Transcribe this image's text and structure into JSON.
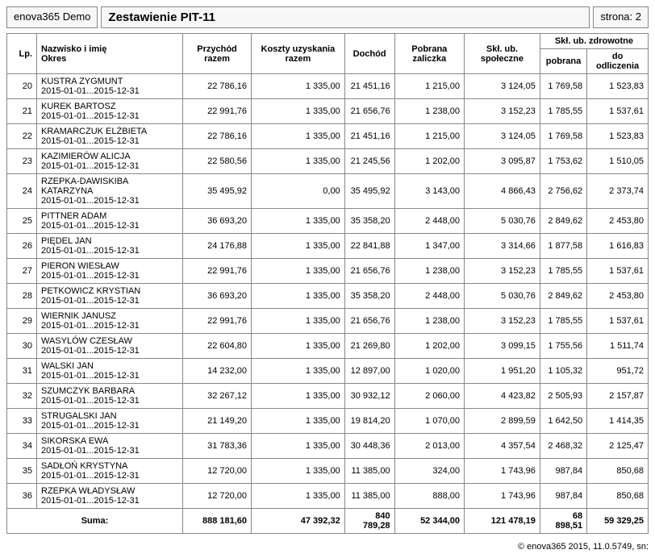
{
  "header": {
    "app": "enova365 Demo",
    "title": "Zestawienie PIT-11",
    "page_label": "strona: 2"
  },
  "columns": {
    "lp": "Lp.",
    "name": "Nazwisko i imię\nOkres",
    "przychod": "Przychód razem",
    "koszty": "Koszty uzyskania razem",
    "dochod": "Dochód",
    "zaliczka": "Pobrana zaliczka",
    "spoleczne": "Skł. ub. społeczne",
    "zdrowotne": "Skł. ub. zdrowotne",
    "zdrowotne_pobrana": "pobrana",
    "zdrowotne_odlicz": "do odliczenia"
  },
  "rows": [
    {
      "lp": "20",
      "name": "KUSTRA ZYGMUNT",
      "period": "2015-01-01...2015-12-31",
      "przychod": "22 786,16",
      "koszty": "1 335,00",
      "dochod": "21 451,16",
      "zaliczka": "1 215,00",
      "spoleczne": "3 124,05",
      "zdr_pob": "1 769,58",
      "zdr_odl": "1 523,83"
    },
    {
      "lp": "21",
      "name": "KUREK BARTOSZ",
      "period": "2015-01-01...2015-12-31",
      "przychod": "22 991,76",
      "koszty": "1 335,00",
      "dochod": "21 656,76",
      "zaliczka": "1 238,00",
      "spoleczne": "3 152,23",
      "zdr_pob": "1 785,55",
      "zdr_odl": "1 537,61"
    },
    {
      "lp": "22",
      "name": "KRAMARCZUK ELŻBIETA",
      "period": "2015-01-01...2015-12-31",
      "przychod": "22 786,16",
      "koszty": "1 335,00",
      "dochod": "21 451,16",
      "zaliczka": "1 215,00",
      "spoleczne": "3 124,05",
      "zdr_pob": "1 769,58",
      "zdr_odl": "1 523,83"
    },
    {
      "lp": "23",
      "name": "KAZIMIERÓW ALICJA",
      "period": "2015-01-01...2015-12-31",
      "przychod": "22 580,56",
      "koszty": "1 335,00",
      "dochod": "21 245,56",
      "zaliczka": "1 202,00",
      "spoleczne": "3 095,87",
      "zdr_pob": "1 753,62",
      "zdr_odl": "1 510,05"
    },
    {
      "lp": "24",
      "name": "RZEPKA-DAWISKIBA KATARZYNA",
      "period": "2015-01-01...2015-12-31",
      "przychod": "35 495,92",
      "koszty": "0,00",
      "dochod": "35 495,92",
      "zaliczka": "3 143,00",
      "spoleczne": "4 866,43",
      "zdr_pob": "2 756,62",
      "zdr_odl": "2 373,74"
    },
    {
      "lp": "25",
      "name": "PITTNER ADAM",
      "period": "2015-01-01...2015-12-31",
      "przychod": "36 693,20",
      "koszty": "1 335,00",
      "dochod": "35 358,20",
      "zaliczka": "2 448,00",
      "spoleczne": "5 030,76",
      "zdr_pob": "2 849,62",
      "zdr_odl": "2 453,80"
    },
    {
      "lp": "26",
      "name": "PIĘDEL JAN",
      "period": "2015-01-01...2015-12-31",
      "przychod": "24 176,88",
      "koszty": "1 335,00",
      "dochod": "22 841,88",
      "zaliczka": "1 347,00",
      "spoleczne": "3 314,66",
      "zdr_pob": "1 877,58",
      "zdr_odl": "1 616,83"
    },
    {
      "lp": "27",
      "name": "PIERON WIESŁAW",
      "period": "2015-01-01...2015-12-31",
      "przychod": "22 991,76",
      "koszty": "1 335,00",
      "dochod": "21 656,76",
      "zaliczka": "1 238,00",
      "spoleczne": "3 152,23",
      "zdr_pob": "1 785,55",
      "zdr_odl": "1 537,61"
    },
    {
      "lp": "28",
      "name": "PETKOWICZ KRYSTIAN",
      "period": "2015-01-01...2015-12-31",
      "przychod": "36 693,20",
      "koszty": "1 335,00",
      "dochod": "35 358,20",
      "zaliczka": "2 448,00",
      "spoleczne": "5 030,76",
      "zdr_pob": "2 849,62",
      "zdr_odl": "2 453,80"
    },
    {
      "lp": "29",
      "name": "WIERNIK JANUSZ",
      "period": "2015-01-01...2015-12-31",
      "przychod": "22 991,76",
      "koszty": "1 335,00",
      "dochod": "21 656,76",
      "zaliczka": "1 238,00",
      "spoleczne": "3 152,23",
      "zdr_pob": "1 785,55",
      "zdr_odl": "1 537,61"
    },
    {
      "lp": "30",
      "name": "WASYLÓW CZESŁAW",
      "period": "2015-01-01...2015-12-31",
      "przychod": "22 604,80",
      "koszty": "1 335,00",
      "dochod": "21 269,80",
      "zaliczka": "1 202,00",
      "spoleczne": "3 099,15",
      "zdr_pob": "1 755,56",
      "zdr_odl": "1 511,74"
    },
    {
      "lp": "31",
      "name": "WALSKI JAN",
      "period": "2015-01-01...2015-12-31",
      "przychod": "14 232,00",
      "koszty": "1 335,00",
      "dochod": "12 897,00",
      "zaliczka": "1 020,00",
      "spoleczne": "1 951,20",
      "zdr_pob": "1 105,32",
      "zdr_odl": "951,72"
    },
    {
      "lp": "32",
      "name": "SZUMCZYK BARBARA",
      "period": "2015-01-01...2015-12-31",
      "przychod": "32 267,12",
      "koszty": "1 335,00",
      "dochod": "30 932,12",
      "zaliczka": "2 060,00",
      "spoleczne": "4 423,82",
      "zdr_pob": "2 505,93",
      "zdr_odl": "2 157,87"
    },
    {
      "lp": "33",
      "name": "STRUGALSKI JAN",
      "period": "2015-01-01...2015-12-31",
      "przychod": "21 149,20",
      "koszty": "1 335,00",
      "dochod": "19 814,20",
      "zaliczka": "1 070,00",
      "spoleczne": "2 899,59",
      "zdr_pob": "1 642,50",
      "zdr_odl": "1 414,35"
    },
    {
      "lp": "34",
      "name": "SIKORSKA EWA",
      "period": "2015-01-01...2015-12-31",
      "przychod": "31 783,36",
      "koszty": "1 335,00",
      "dochod": "30 448,36",
      "zaliczka": "2 013,00",
      "spoleczne": "4 357,54",
      "zdr_pob": "2 468,32",
      "zdr_odl": "2 125,47"
    },
    {
      "lp": "35",
      "name": "SADŁOŃ KRYSTYNA",
      "period": "2015-01-01...2015-12-31",
      "przychod": "12 720,00",
      "koszty": "1 335,00",
      "dochod": "11 385,00",
      "zaliczka": "324,00",
      "spoleczne": "1 743,96",
      "zdr_pob": "987,84",
      "zdr_odl": "850,68"
    },
    {
      "lp": "36",
      "name": "RZEPKA WŁADYSŁAW",
      "period": "2015-01-01...2015-12-31",
      "przychod": "12 720,00",
      "koszty": "1 335,00",
      "dochod": "11 385,00",
      "zaliczka": "888,00",
      "spoleczne": "1 743,96",
      "zdr_pob": "987,84",
      "zdr_odl": "850,68"
    }
  ],
  "sum": {
    "label": "Suma:",
    "przychod": "888 181,60",
    "koszty": "47 392,32",
    "dochod": "840 789,28",
    "zaliczka": "52 344,00",
    "spoleczne": "121 478,19",
    "zdr_pob": "68 898,51",
    "zdr_odl": "59 329,25"
  },
  "footer": "© enova365 2015, 11.0.5749, sn:"
}
